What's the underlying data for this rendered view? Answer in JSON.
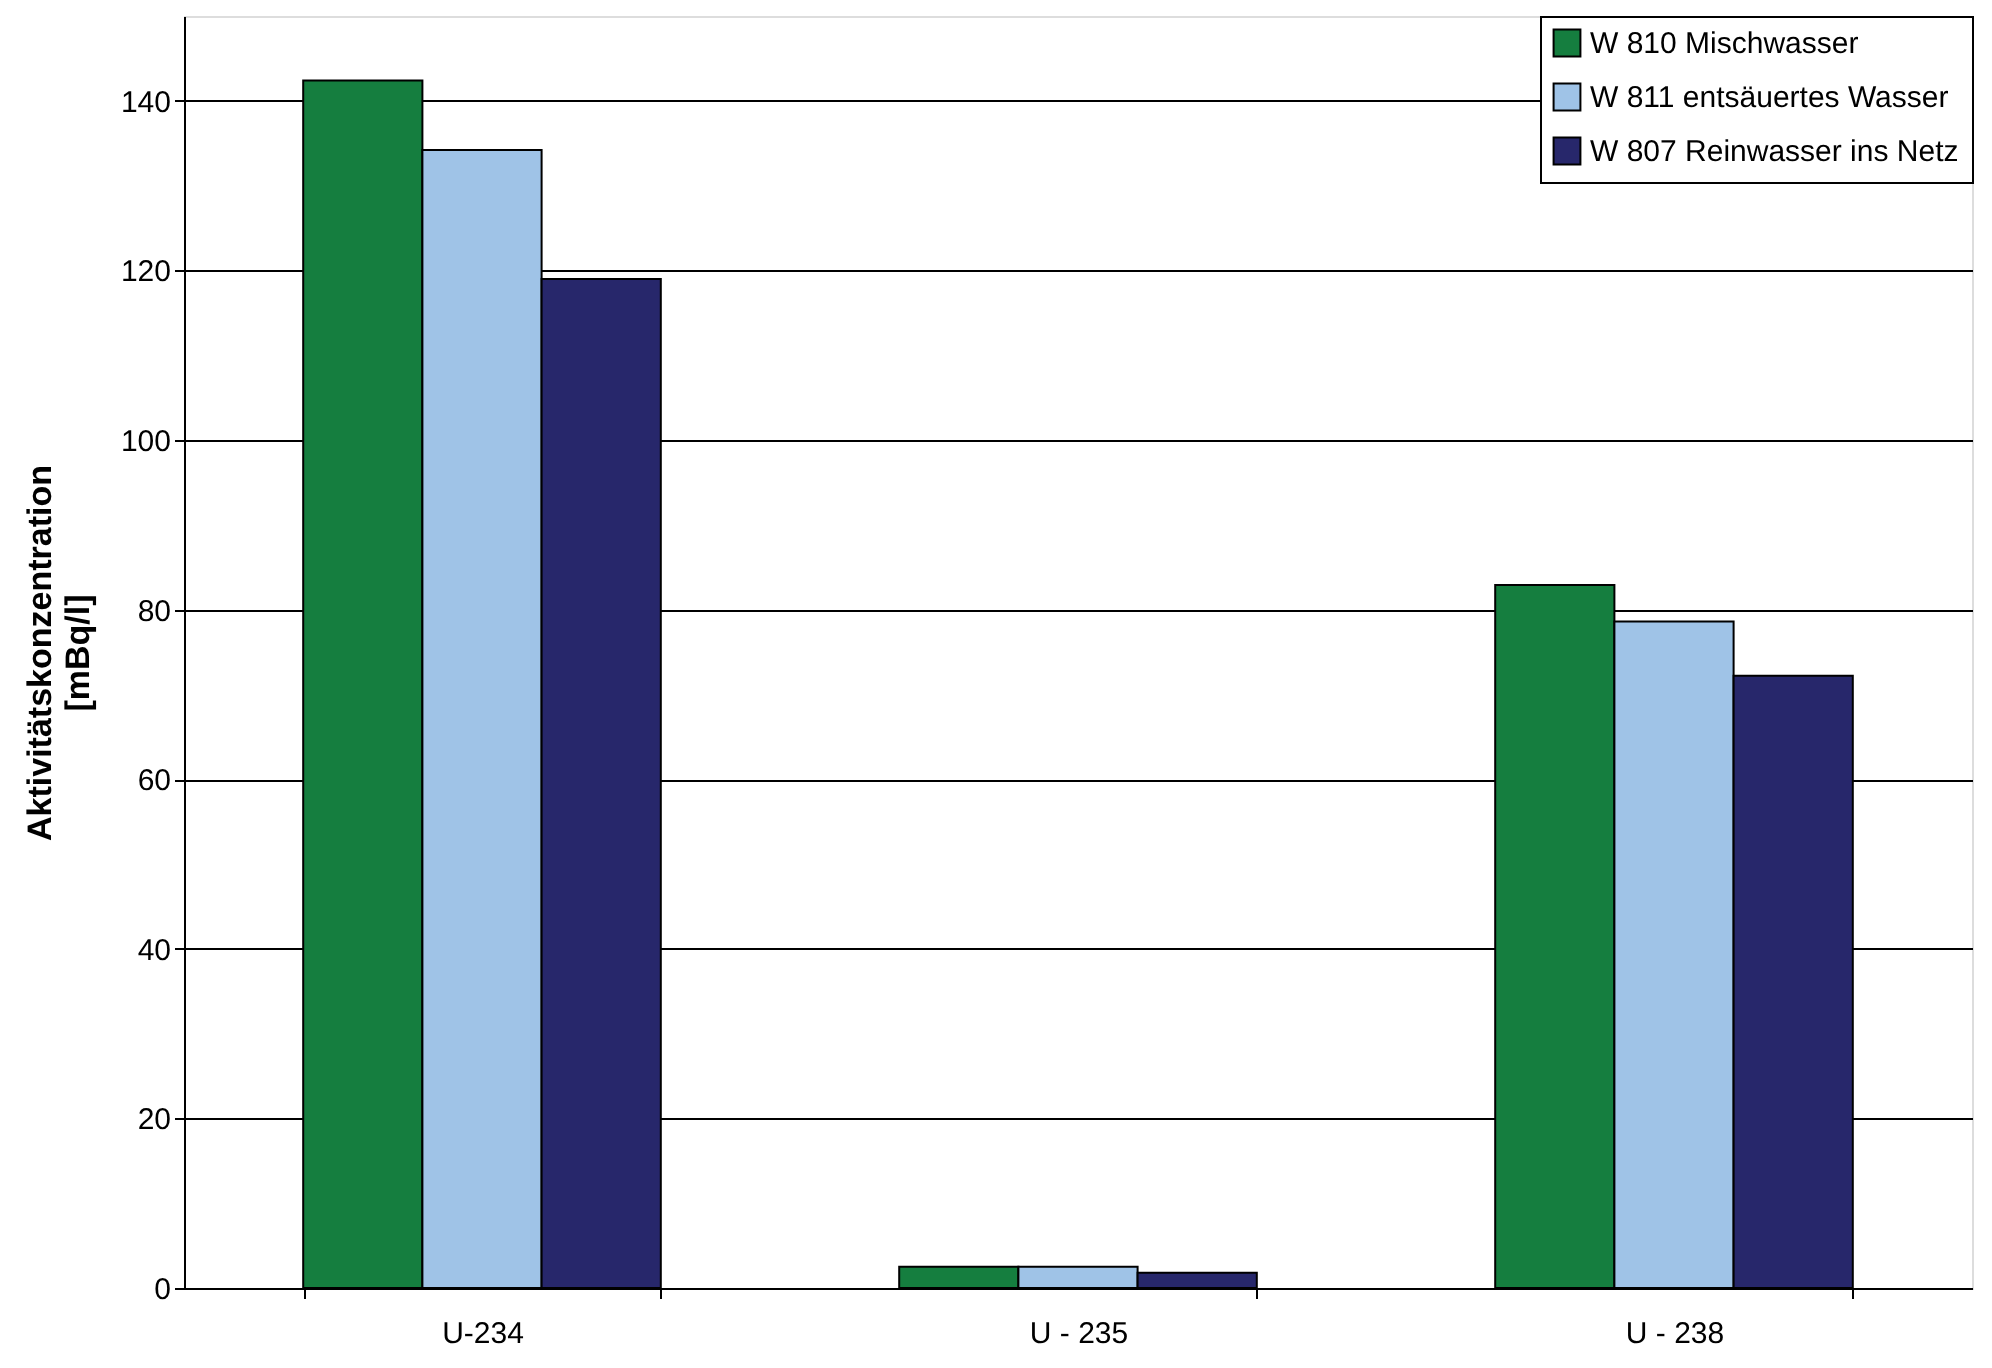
{
  "chart_data": {
    "type": "bar",
    "ylabel": "Aktivitätskonzentration\n[mBq/l]",
    "categories": [
      "U-234",
      "U - 235",
      "U - 238"
    ],
    "series": [
      {
        "name": "W 810 Mischwasser",
        "color": "#157e3f",
        "values": [
          142.4,
          2.5,
          82.9
        ]
      },
      {
        "name": "W 811 entsäuertes Wasser",
        "color": "#9fc3e7",
        "values": [
          134.2,
          2.5,
          78.6
        ]
      },
      {
        "name": "W 807 Reinwasser ins Netz",
        "color": "#27276b",
        "values": [
          119,
          1.8,
          72.2
        ]
      }
    ],
    "ylim": [
      0,
      150
    ],
    "yticks": [
      0,
      20,
      40,
      60,
      80,
      100,
      120,
      140
    ],
    "grid": "y",
    "legend": "top right"
  }
}
